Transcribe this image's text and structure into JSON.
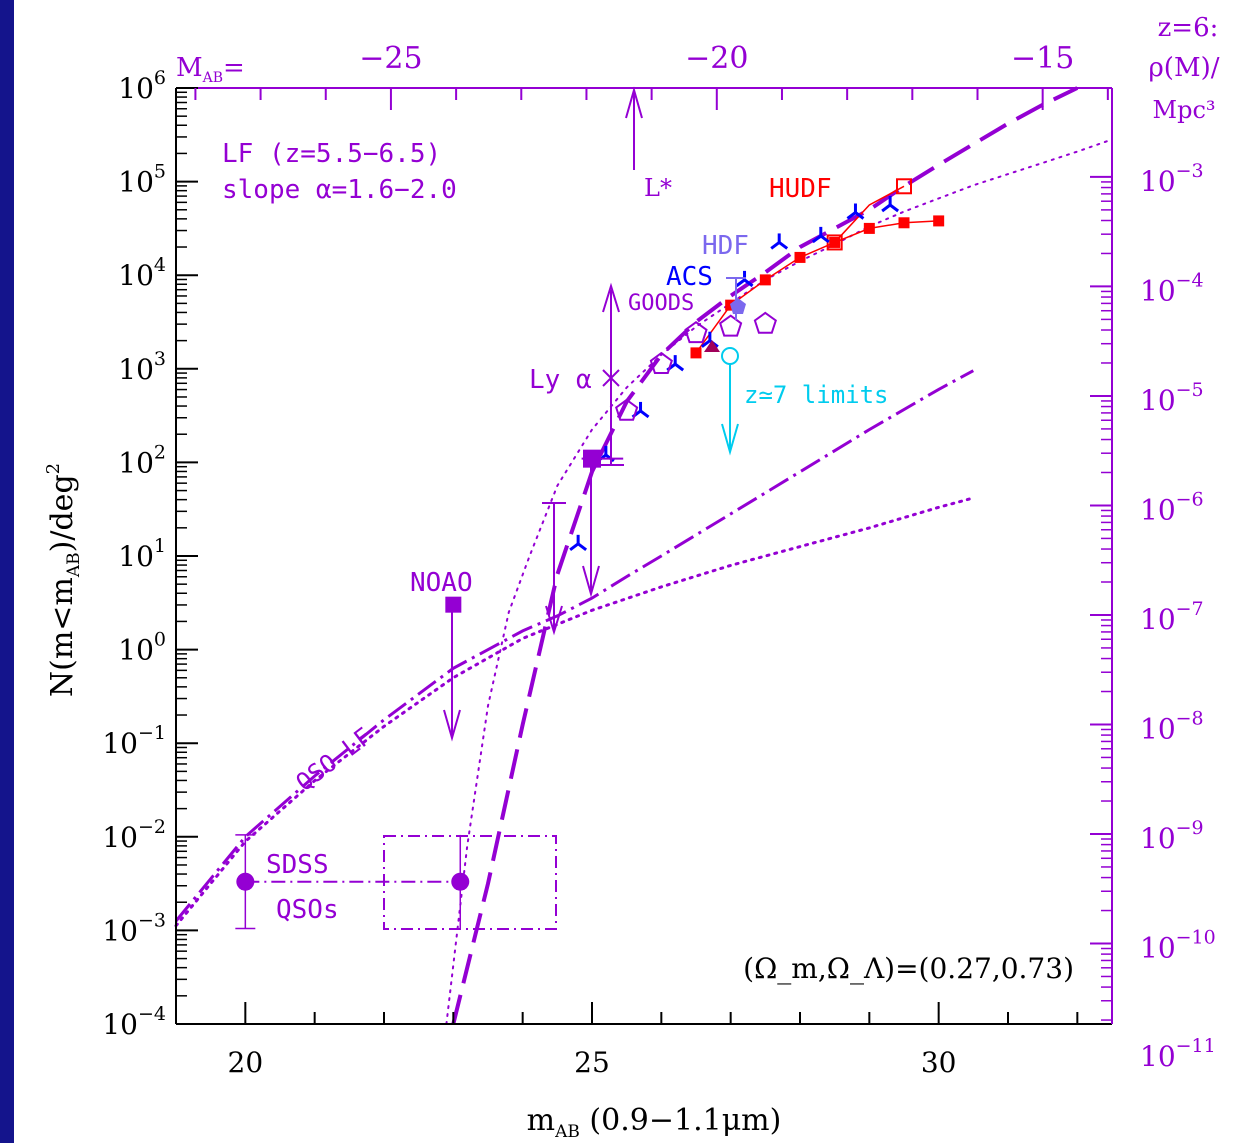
{
  "colors": {
    "frame": "#14148c",
    "axis": "#000000",
    "purple": "#9400d3",
    "hudf": "#ff0000",
    "acs": "#0000ff",
    "hdf": "#7b68ee",
    "cyan": "#00ccee"
  },
  "chart_data": {
    "type": "scatter",
    "xlabel": {
      "main": "m",
      "sub": "AB",
      "tail": " (0.9−1.1μm)"
    },
    "ylabel": {
      "main": "N(m<m",
      "sub": "AB",
      "tail": ")/deg",
      "sup": "2"
    },
    "xlim": [
      19,
      32.5
    ],
    "ylim_log10": [
      -4,
      6
    ],
    "x_ticks": [
      20,
      25,
      30
    ],
    "x_tick_labels": [
      "20",
      "25",
      "30"
    ],
    "y_ticks_log10": [
      6,
      5,
      4,
      3,
      2,
      1,
      0,
      -1,
      -2,
      -3,
      -4
    ],
    "y_tick_labels": {
      "base": "10",
      "exps": [
        "6",
        "5",
        "4",
        "3",
        "2",
        "1",
        "0",
        "−1",
        "−2",
        "−3",
        "−4"
      ]
    },
    "top_axis": {
      "label": {
        "main": "M",
        "sub": "AB",
        "tail": "="
      },
      "ticks_at_mAB": [
        22.1,
        26.8,
        31.5
      ],
      "tick_labels": [
        "−25",
        "−20",
        "−15"
      ]
    },
    "right_axis": {
      "title_lines": [
        "z=6:",
        "ρ(M)/",
        "Mpc³"
      ],
      "ticks_log10N": [
        5.05,
        3.88,
        2.71,
        1.54,
        0.37,
        -0.8,
        -1.97,
        -3.14,
        -4.3
      ],
      "tick_labels": {
        "base": "10",
        "exps": [
          "−3",
          "−4",
          "−5",
          "−6",
          "−7",
          "−8",
          "−9",
          "−10",
          "−11"
        ]
      }
    },
    "annotations": {
      "lf_line1": "LF (z=5.5−6.5)",
      "lf_line2": "slope α=1.6−2.0",
      "lstar": "L*",
      "hudf": "HUDF",
      "hdf": "HDF",
      "acs": "ACS",
      "goods": "GOODS",
      "lya": "Ly α",
      "z7": "z≃7 limits",
      "noao": "NOAO",
      "qsolf": "QSO−LF",
      "sdss1": "SDSS",
      "sdss2": "QSOs",
      "cosmo": "(Ω_m,Ω_Λ)=(0.27,0.73)"
    },
    "series": [
      {
        "name": "HUDF",
        "marker": "filled-square",
        "color": "#ff0000",
        "x": [
          26.5,
          27.0,
          27.5,
          28.0,
          28.5,
          29.0,
          29.5,
          30.0
        ],
        "y_log10": [
          3.17,
          3.68,
          3.95,
          4.19,
          4.35,
          4.5,
          4.56,
          4.58
        ]
      },
      {
        "name": "HUDF-open",
        "marker": "open-square",
        "color": "#ff0000",
        "x": [
          28.5,
          29.5
        ],
        "y_log10": [
          4.35,
          4.95
        ]
      },
      {
        "name": "ACS",
        "marker": "tri",
        "color": "#0000ff",
        "x": [
          24.8,
          25.2,
          25.7,
          26.2,
          26.7,
          27.2,
          27.7,
          28.3,
          28.8,
          29.3
        ],
        "y_log10": [
          1.13,
          2.08,
          2.55,
          3.05,
          3.3,
          3.95,
          4.35,
          4.42,
          4.67,
          4.75
        ]
      },
      {
        "name": "GOODS",
        "marker": "open-pentagon",
        "color": "#9400d3",
        "x": [
          25.5,
          26.0,
          26.5,
          27.0,
          27.5
        ],
        "y_log10": [
          2.55,
          3.05,
          3.38,
          3.45,
          3.48
        ]
      },
      {
        "name": "NOAO",
        "marker": "filled-square",
        "color": "#9400d3",
        "x": [
          23.0
        ],
        "y_log10": [
          0.48
        ]
      },
      {
        "name": "SDSS QSOs",
        "marker": "filled-circle",
        "color": "#9400d3",
        "x": [
          20.0,
          23.1
        ],
        "y_log10": [
          -2.48,
          -2.48
        ]
      }
    ],
    "curves": [
      {
        "name": "",
        "style": "long-dash",
        "width": 4,
        "color": "#9400d3",
        "x": [
          23.0,
          23.5,
          24.0,
          24.5,
          25.0,
          25.5,
          26.0,
          26.5,
          27.0,
          27.5,
          28.0,
          28.5,
          29.0,
          29.5,
          30.0,
          30.5,
          31.0,
          31.5,
          32.0
        ],
        "y_log10": [
          -4.0,
          -2.5,
          -0.8,
          0.8,
          1.9,
          2.65,
          3.15,
          3.5,
          3.78,
          4.03,
          4.3,
          4.5,
          4.7,
          4.95,
          5.18,
          5.4,
          5.62,
          5.82,
          6.0
        ]
      },
      {
        "name": "",
        "style": "dotted",
        "width": 2,
        "color": "#9400d3",
        "x": [
          22.9,
          23.2,
          23.5,
          23.8,
          24.1,
          24.5,
          25.0,
          25.5,
          26.0,
          26.5,
          27.0,
          27.5,
          28.0,
          28.5,
          29.0,
          29.5,
          30.0,
          30.5,
          31.0,
          31.5,
          32.0,
          32.5
        ],
        "y_log10": [
          -4.0,
          -2.1,
          -0.6,
          0.4,
          1.0,
          1.75,
          2.35,
          2.8,
          3.15,
          3.45,
          3.7,
          3.95,
          4.15,
          4.33,
          4.52,
          4.68,
          4.82,
          4.96,
          5.08,
          5.2,
          5.32,
          5.45
        ]
      },
      {
        "name": "",
        "style": "dot-dash",
        "width": 3,
        "color": "#9400d3",
        "x": [
          19.0,
          20.0,
          21.0,
          22.0,
          23.0,
          24.0,
          24.5,
          25.0,
          25.5,
          26.0,
          27.0,
          28.0,
          29.0,
          30.0,
          30.5
        ],
        "y_log10": [
          -2.9,
          -2.0,
          -1.35,
          -0.75,
          -0.2,
          0.2,
          0.36,
          0.55,
          0.78,
          1.0,
          1.45,
          1.9,
          2.35,
          2.78,
          2.98
        ]
      },
      {
        "name": "",
        "style": "dotted",
        "width": 3,
        "color": "#9400d3",
        "x": [
          19.0,
          20.0,
          21.0,
          22.0,
          23.0,
          24.0,
          25.0,
          26.0,
          27.0,
          28.0,
          29.0,
          30.0,
          30.5
        ],
        "y_log10": [
          -2.95,
          -2.05,
          -1.4,
          -0.82,
          -0.3,
          0.12,
          0.42,
          0.67,
          0.9,
          1.1,
          1.3,
          1.52,
          1.62
        ]
      }
    ]
  }
}
